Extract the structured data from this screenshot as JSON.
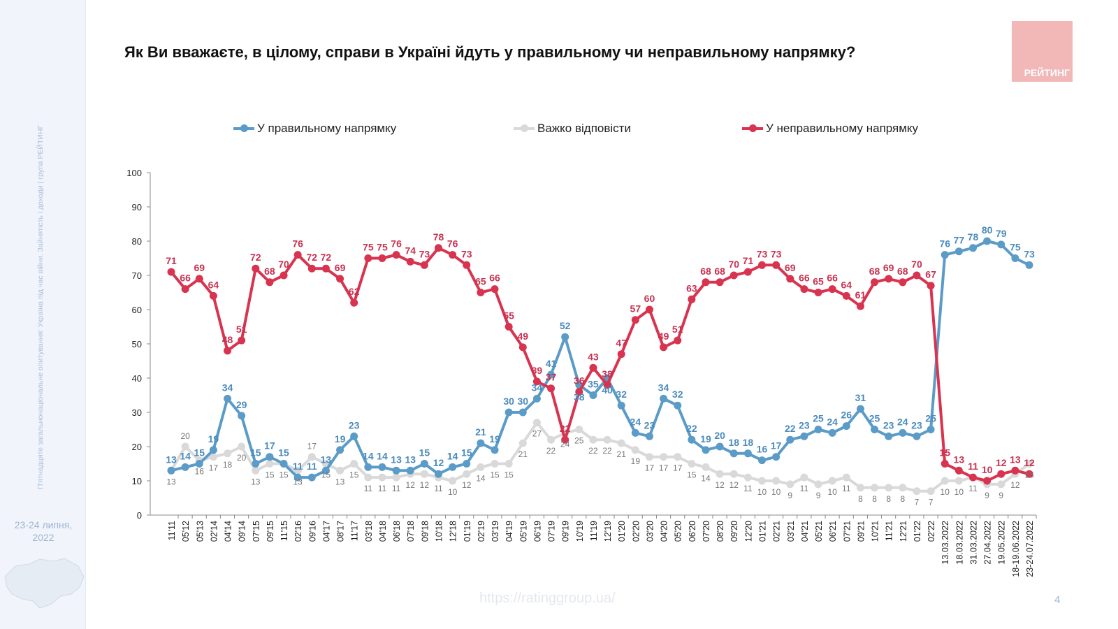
{
  "title": "Як Ви вважаєте, в цілому, справи в Україні йдуть у правильному чи неправильному напрямку?",
  "logo_text": "РЕЙТИНГ",
  "sidebar": {
    "vertical_text": "П'ятнадцяте загальнонаціональне опитування: Україна під час війни. Зайнятість і доходи | група РЕЙТИНГ",
    "date": "23-24 липня, 2022"
  },
  "footer": {
    "url": "https://ratinggroup.ua/",
    "page": "4"
  },
  "chart_data": {
    "type": "line",
    "title": "Як Ви вважаєте, в цілому, справи в Україні йдуть у правильному чи неправильному напрямку?",
    "ylim": [
      0,
      100
    ],
    "yticks": [
      0,
      10,
      20,
      30,
      40,
      50,
      60,
      70,
      80,
      90,
      100
    ],
    "grid": false,
    "legend": "top",
    "categories": [
      "11'11",
      "05'12",
      "05'13",
      "02'14",
      "04'14",
      "09'14",
      "07'15",
      "09'15",
      "11'15",
      "02'16",
      "09'16",
      "04'17",
      "08'17",
      "11'17",
      "03'18",
      "04'18",
      "06'18",
      "07'18",
      "09'18",
      "10'18",
      "12'18",
      "01'19",
      "02'19",
      "03'19",
      "04'19",
      "05'19",
      "06'19",
      "07'19",
      "09'19",
      "10'19",
      "11'19",
      "12'19",
      "01'20",
      "02'20",
      "03'20",
      "04'20",
      "05'20",
      "06'20",
      "07'20",
      "08'20",
      "09'20",
      "12'20",
      "01'21",
      "02'21",
      "03'21",
      "04'21",
      "05'21",
      "06'21",
      "07'21",
      "09'21",
      "10'21",
      "11'21",
      "12'21",
      "01'22",
      "02'22",
      "13.03.2022",
      "18.03.2022",
      "31.03.2022",
      "27.04.2022",
      "19.05.2022",
      "18-19.06.2022",
      "23-24.07.2022"
    ],
    "series": [
      {
        "name": "У правильному напрямку",
        "color": "#5b9bc8",
        "values": [
          13,
          14,
          15,
          19,
          34,
          29,
          15,
          17,
          15,
          11,
          11,
          13,
          19,
          23,
          14,
          14,
          13,
          13,
          15,
          12,
          14,
          15,
          21,
          19,
          30,
          30,
          34,
          41,
          52,
          38,
          35,
          40,
          32,
          24,
          23,
          34,
          32,
          22,
          19,
          20,
          18,
          18,
          16,
          17,
          22,
          23,
          25,
          24,
          26,
          31,
          25,
          23,
          24,
          23,
          25,
          76,
          77,
          78,
          80,
          79,
          75,
          73
        ]
      },
      {
        "name": "Важко відповісти",
        "color": "#d9d9d9",
        "values": [
          13,
          20,
          16,
          17,
          18,
          20,
          13,
          15,
          15,
          13,
          17,
          15,
          13,
          15,
          11,
          11,
          11,
          12,
          12,
          11,
          10,
          12,
          14,
          15,
          15,
          21,
          27,
          22,
          24,
          25,
          22,
          22,
          21,
          19,
          17,
          17,
          17,
          15,
          14,
          12,
          12,
          11,
          10,
          10,
          9,
          11,
          9,
          10,
          11,
          8,
          8,
          8,
          8,
          7,
          7,
          10,
          10,
          11,
          9,
          9,
          12,
          15
        ]
      },
      {
        "name": "У неправильному напрямку",
        "color": "#d8334f",
        "values": [
          71,
          66,
          69,
          64,
          48,
          51,
          72,
          68,
          70,
          76,
          72,
          72,
          69,
          62,
          75,
          75,
          76,
          74,
          73,
          78,
          76,
          73,
          65,
          66,
          55,
          49,
          39,
          37,
          22,
          36,
          43,
          38,
          47,
          57,
          60,
          49,
          51,
          63,
          68,
          68,
          70,
          71,
          73,
          73,
          69,
          66,
          65,
          66,
          64,
          61,
          68,
          69,
          68,
          70,
          67,
          15,
          13,
          11,
          10,
          12,
          13,
          12
        ]
      }
    ]
  }
}
